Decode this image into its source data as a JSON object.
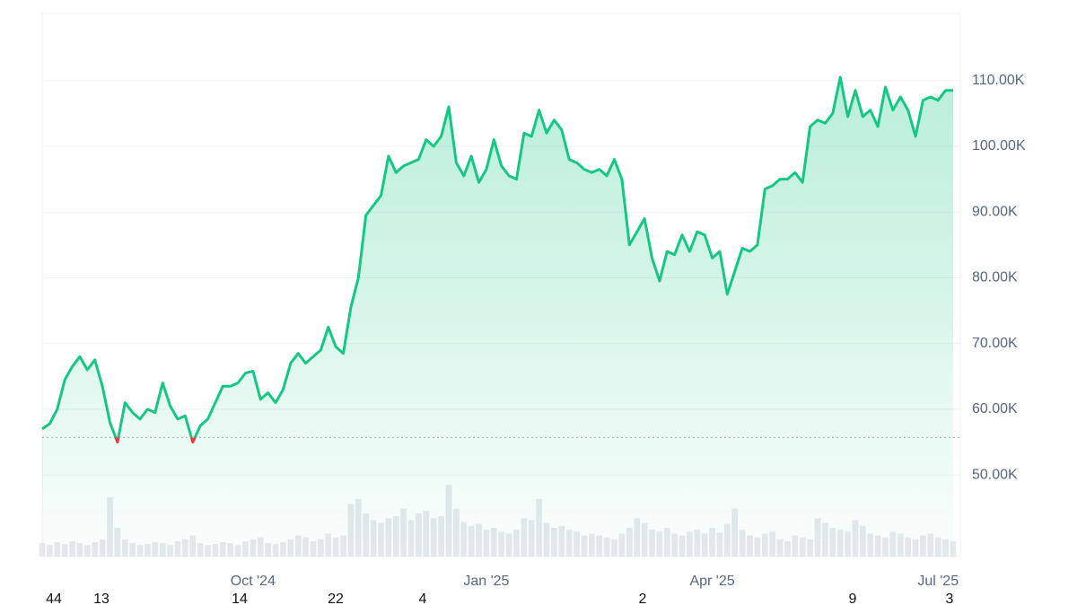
{
  "chart_data": {
    "type": "area",
    "categories": [
      null,
      null,
      null,
      null,
      null,
      null,
      null,
      null,
      null,
      null,
      null,
      null,
      null,
      null,
      null,
      null,
      null,
      null,
      null,
      null,
      null,
      null,
      null,
      null,
      null,
      null,
      null,
      null,
      "Oct '24",
      null,
      null,
      null,
      null,
      null,
      null,
      null,
      null,
      null,
      null,
      null,
      null,
      null,
      null,
      null,
      null,
      null,
      null,
      null,
      null,
      null,
      null,
      null,
      null,
      null,
      null,
      null,
      null,
      null,
      null,
      "Jan '25",
      null,
      null,
      null,
      null,
      null,
      null,
      null,
      null,
      null,
      null,
      null,
      null,
      null,
      null,
      null,
      null,
      null,
      null,
      null,
      null,
      null,
      null,
      null,
      null,
      null,
      null,
      null,
      null,
      null,
      "Apr '25",
      null,
      null,
      null,
      null,
      null,
      null,
      null,
      null,
      null,
      null,
      null,
      null,
      null,
      null,
      null,
      null,
      null,
      null,
      null,
      null,
      null,
      null,
      null,
      null,
      null,
      null,
      null,
      null,
      null,
      "Jul '25",
      null,
      null
    ],
    "values": [
      57000,
      57800,
      60000,
      64500,
      66500,
      68000,
      66000,
      67500,
      63500,
      58000,
      55000,
      61000,
      59500,
      58500,
      60000,
      59500,
      64000,
      60500,
      58500,
      59000,
      55000,
      57500,
      58500,
      61000,
      63500,
      63500,
      64000,
      65500,
      65800,
      61500,
      62500,
      61000,
      63000,
      67000,
      68500,
      67000,
      68000,
      69000,
      72500,
      69500,
      68500,
      75500,
      80000,
      89500,
      91000,
      92500,
      98500,
      96000,
      97000,
      97500,
      98000,
      101000,
      100000,
      101500,
      106000,
      97500,
      95500,
      98500,
      94500,
      96500,
      101000,
      97000,
      95500,
      95000,
      102000,
      101500,
      105500,
      102000,
      104000,
      102500,
      98000,
      97500,
      96500,
      96000,
      96500,
      95500,
      98000,
      95000,
      85000,
      87000,
      89000,
      83000,
      79500,
      84000,
      83500,
      86500,
      84000,
      87000,
      86500,
      83000,
      84000,
      77500,
      81000,
      84500,
      84000,
      85000,
      93500,
      94000,
      95000,
      95000,
      96000,
      94500,
      103000,
      104000,
      103500,
      105000,
      110500,
      104500,
      108500,
      104500,
      105500,
      103000,
      109000,
      105500,
      107500,
      105500,
      101500,
      107000,
      107500,
      107000,
      108500,
      108500
    ],
    "color": "#16c784",
    "down_color": "#ea3943",
    "baseline": 55700,
    "volume": [
      14,
      12,
      15,
      13,
      16,
      14,
      12,
      15,
      18,
      62,
      30,
      18,
      14,
      12,
      13,
      15,
      14,
      12,
      16,
      18,
      22,
      14,
      12,
      13,
      15,
      14,
      12,
      16,
      18,
      20,
      14,
      13,
      15,
      18,
      22,
      20,
      16,
      18,
      24,
      20,
      22,
      55,
      60,
      45,
      38,
      35,
      40,
      42,
      50,
      38,
      45,
      48,
      40,
      42,
      75,
      50,
      36,
      32,
      34,
      28,
      30,
      26,
      24,
      28,
      40,
      38,
      60,
      35,
      30,
      32,
      28,
      26,
      22,
      24,
      22,
      20,
      18,
      24,
      30,
      40,
      35,
      28,
      26,
      30,
      24,
      22,
      26,
      28,
      24,
      30,
      25,
      34,
      50,
      28,
      22,
      20,
      24,
      26,
      18,
      16,
      22,
      20,
      18,
      40,
      35,
      30,
      28,
      26,
      38,
      32,
      24,
      22,
      20,
      26,
      24,
      20,
      18,
      22,
      24,
      20,
      18,
      16
    ],
    "volume_color": "#e6e9ee",
    "ylim": [
      37600,
      120200
    ],
    "yticks": [
      {
        "value": 50000,
        "label": "50.00K"
      },
      {
        "value": 60000,
        "label": "60.00K"
      },
      {
        "value": 70000,
        "label": "70.00K"
      },
      {
        "value": 80000,
        "label": "80.00K"
      },
      {
        "value": 90000,
        "label": "90.00K"
      },
      {
        "value": 100000,
        "label": "100.00K"
      },
      {
        "value": 110000,
        "label": "110.00K"
      }
    ],
    "grid": true,
    "footer_labels": [
      "44",
      "13",
      "14",
      "22",
      "4",
      "2",
      "9",
      "3"
    ]
  }
}
